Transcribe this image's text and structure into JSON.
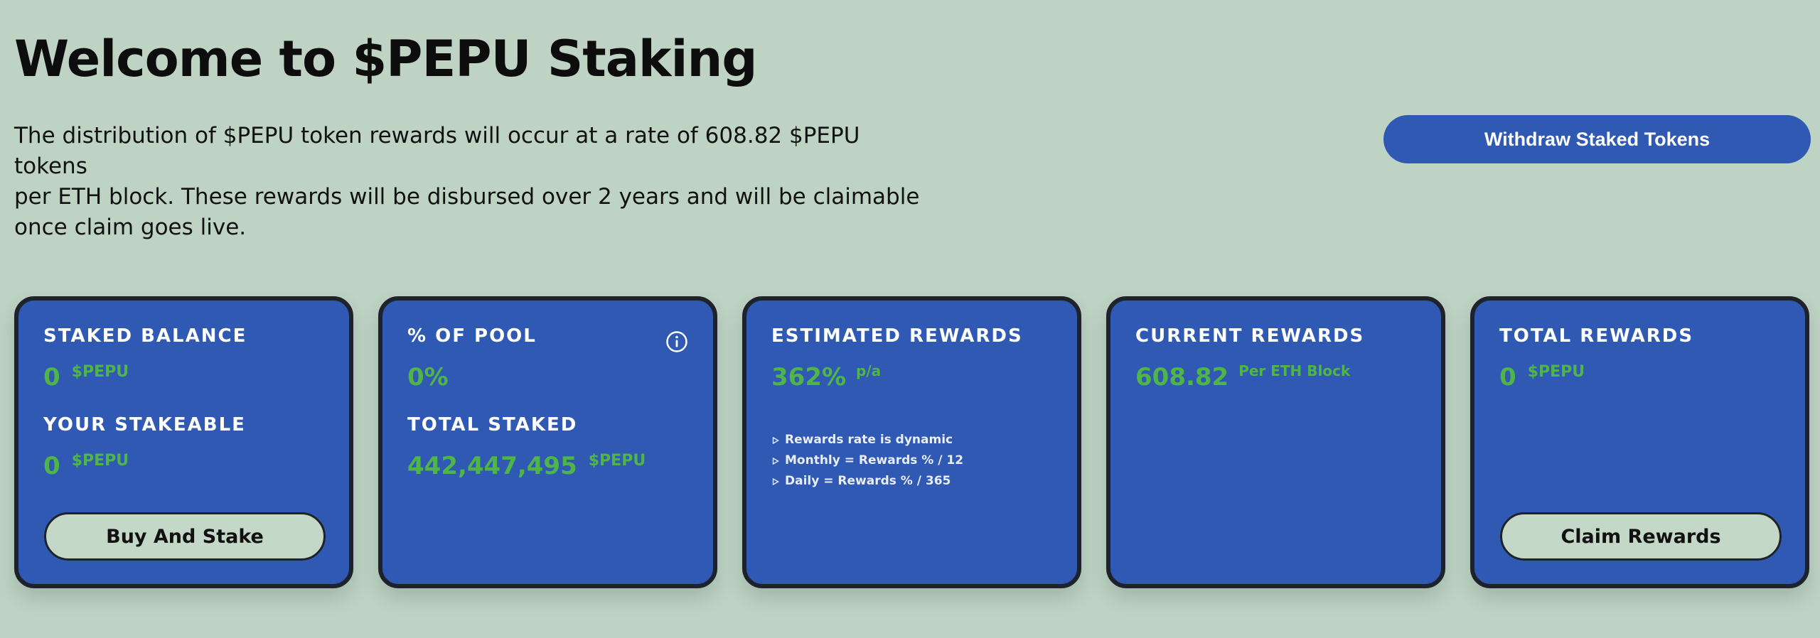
{
  "header": {
    "title": "Welcome to $PEPU Staking",
    "intro_lines": [
      "The distribution of $PEPU token rewards will occur at a rate of 608.82 $PEPU tokens",
      "per ETH block. These rewards will be disbursed over 2 years and will be claimable",
      "once claim goes live."
    ],
    "withdraw_label": "Withdraw Staked Tokens"
  },
  "cards": {
    "staked": {
      "label": "STAKED BALANCE",
      "value": "0",
      "unit": "$PEPU",
      "stakeable_label": "YOUR STAKEABLE",
      "stakeable_value": "0",
      "stakeable_unit": "$PEPU",
      "button_label": "Buy And Stake"
    },
    "pool": {
      "label": "% OF POOL",
      "value": "0%",
      "info_icon": "info-icon",
      "total_label": "TOTAL STAKED",
      "total_value": "442,447,495",
      "total_unit": "$PEPU"
    },
    "estimated": {
      "label": "ESTIMATED REWARDS",
      "value": "362%",
      "unit": "p/a",
      "notes": [
        "Rewards rate is dynamic",
        "Monthly = Rewards % / 12",
        "Daily = Rewards % / 365"
      ]
    },
    "current": {
      "label": "CURRENT REWARDS",
      "value": "608.82",
      "unit": "Per ETH Block"
    },
    "total": {
      "label": "TOTAL REWARDS",
      "value": "0",
      "unit": "$PEPU",
      "button_label": "Claim Rewards"
    }
  },
  "colors": {
    "background": "#bed3c3",
    "card": "#3059b3",
    "card_border": "#1f222b",
    "accent_green": "#4fb548",
    "button_light": "#c4d8c8"
  }
}
